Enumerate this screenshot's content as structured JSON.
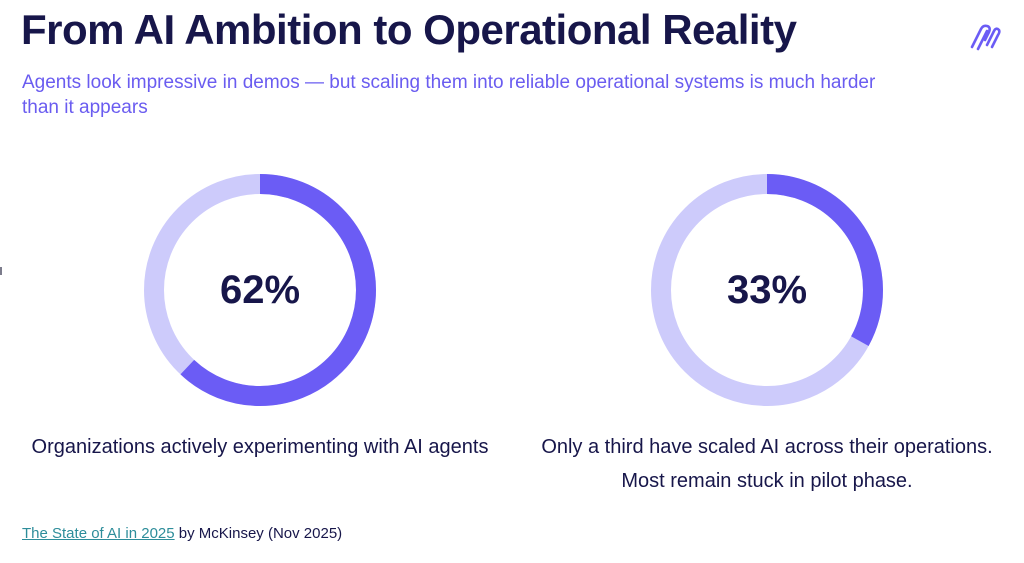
{
  "header": {
    "title": "From AI Ambition to Operational Reality",
    "subtitle": "Agents look impressive in demos — but scaling them into reliable operational systems is much harder than it appears"
  },
  "logo": {
    "icon": "brand-logo-icon",
    "color": "#6b5cf5"
  },
  "colors": {
    "accent": "#6b5cf5",
    "track": "#cdcbfb",
    "text_dark": "#17164a",
    "subtitle": "#6a5cf0",
    "link": "#2d8d9a"
  },
  "chart_data": [
    {
      "type": "pie",
      "variant": "donut",
      "value": 62,
      "unit": "%",
      "label": "62%",
      "caption": "Organizations actively experimenting with AI agents"
    },
    {
      "type": "pie",
      "variant": "donut",
      "value": 33,
      "unit": "%",
      "label": "33%",
      "caption": "Only a third have scaled AI across their operations. Most remain stuck in pilot phase."
    }
  ],
  "source": {
    "link_text": "The State of AI in 2025",
    "rest": " by McKinsey (Nov 2025)"
  }
}
